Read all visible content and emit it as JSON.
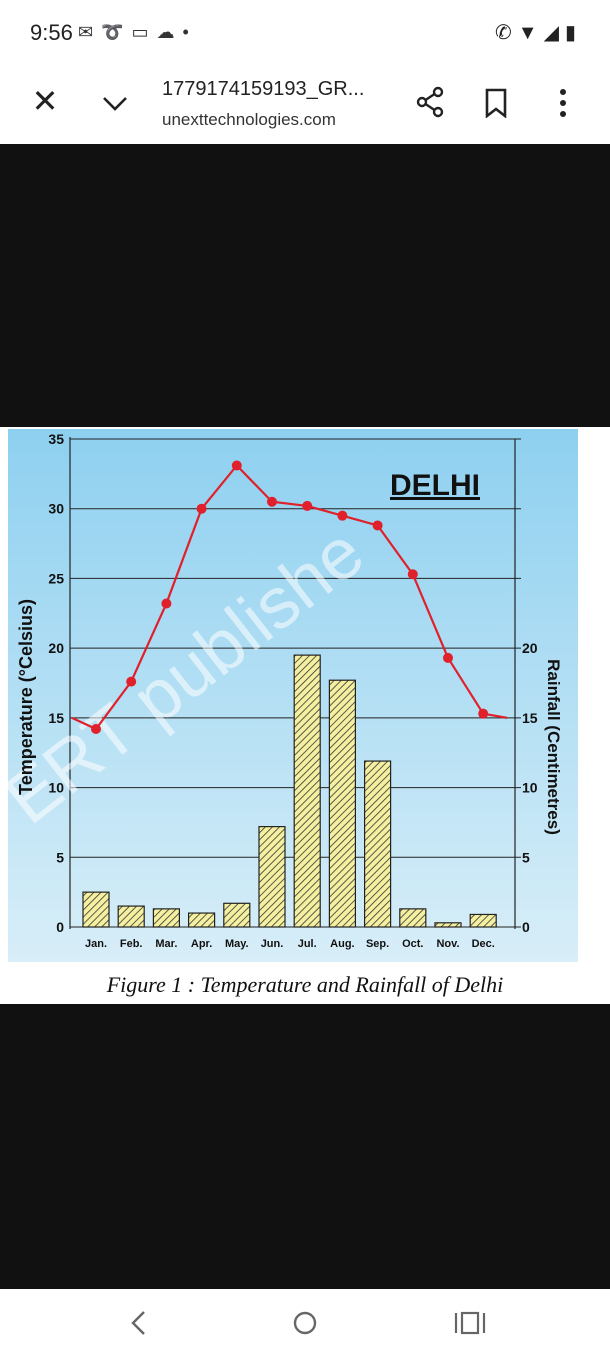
{
  "status_bar": {
    "time": "9:56",
    "left_icons": [
      "gmail-icon",
      "airtel-icon",
      "message-icon",
      "cloud-icon",
      "dot-icon"
    ],
    "right_icons": [
      "wifi-call-icon",
      "wifi-icon",
      "signal-icon",
      "battery-icon"
    ]
  },
  "toolbar": {
    "title": "1779174159193_GR...",
    "subtitle": "unexttechnologies.com"
  },
  "chart_data": {
    "type": "bar",
    "title": "DELHI",
    "caption": "Figure 1 : Temperature and Rainfall of Delhi",
    "categories": [
      "Jan.",
      "Feb.",
      "Mar.",
      "Apr.",
      "May.",
      "Jun.",
      "Jul.",
      "Aug.",
      "Sep.",
      "Oct.",
      "Nov.",
      "Dec."
    ],
    "series": [
      {
        "name": "Rainfall",
        "type": "bar",
        "axis": "right",
        "values": [
          2.5,
          1.5,
          1.3,
          1.0,
          1.7,
          7.2,
          19.5,
          17.7,
          11.9,
          1.3,
          0.3,
          0.9
        ]
      },
      {
        "name": "Temperature",
        "type": "line",
        "axis": "left",
        "values": [
          14.2,
          17.6,
          23.2,
          30.0,
          33.1,
          30.5,
          30.2,
          29.5,
          28.8,
          25.3,
          19.3,
          15.3
        ]
      }
    ],
    "ylabel": "Temperature (°Celsius)",
    "ylabel_right": "Rainfall (Centimetres)",
    "ylim": [
      0,
      35
    ],
    "ylim_right": [
      0,
      35
    ],
    "yticks": [
      "35",
      "30",
      "25",
      "20",
      "15",
      "10",
      "5",
      "0"
    ],
    "yticks_right": [
      "20",
      "15",
      "10",
      "5",
      "0"
    ],
    "grid": true,
    "watermark": "ERT publishe",
    "colors": {
      "bar_fill": "#f5f0a0",
      "line": "#e0202a",
      "background_top": "#8ed0f0",
      "background_bottom": "#d8eef8"
    }
  }
}
